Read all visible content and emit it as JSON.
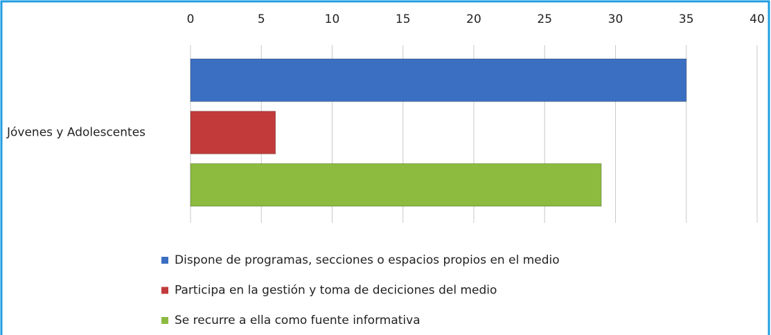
{
  "chart_data": {
    "type": "barh",
    "categories": [
      "Jóvenes y Adolescentes"
    ],
    "series": [
      {
        "name": "Dispone de programas, secciones o espacios propios en el medio",
        "color": "#3b6fc2",
        "values": [
          35
        ]
      },
      {
        "name": "Participa en la gestión y toma de deciciones del medio",
        "color": "#c23a3a",
        "values": [
          6
        ]
      },
      {
        "name": "Se recurre a ella como fuente informativa",
        "color": "#8cbb3f",
        "values": [
          29
        ]
      }
    ],
    "xlim": [
      0,
      40
    ],
    "xticks": [
      0,
      5,
      10,
      15,
      20,
      25,
      30,
      35,
      40
    ],
    "grid": true,
    "legend": "bottom"
  }
}
